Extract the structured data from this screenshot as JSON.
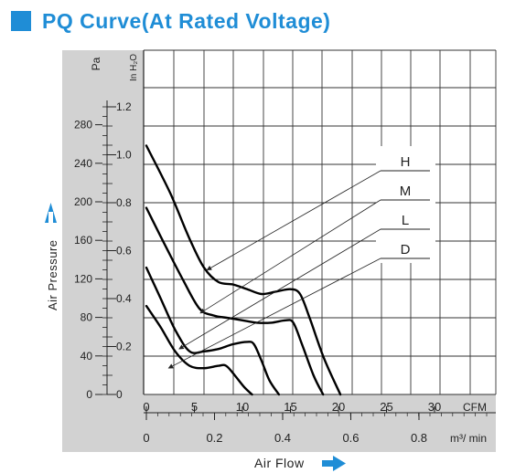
{
  "header": {
    "title": "PQ Curve(At Rated Voltage)"
  },
  "colors": {
    "accent": "#1f8dd6",
    "panel": "#d2d2d2",
    "grid": "#333333",
    "curve": "#000000"
  },
  "chart_data": {
    "type": "line",
    "title": "PQ Curve(At Rated Voltage)",
    "xlabel": "Air Flow",
    "ylabel": "Air Pressure",
    "y_unit_primary": "Pa",
    "y_unit_secondary": "In H₂O",
    "x_unit_primary": "CFM",
    "x_unit_secondary": "m³/ min",
    "x_ticks_cfm": [
      "0",
      "5",
      "10",
      "15",
      "20",
      "25",
      "30"
    ],
    "x_ticks_m3min": [
      "0",
      "0.2",
      "0.4",
      "0.6",
      "0.8"
    ],
    "y_ticks_pa": [
      "0",
      "40",
      "80",
      "120",
      "160",
      "200",
      "240",
      "280"
    ],
    "y_ticks_inh2o": [
      "0",
      "0.2",
      "0.4",
      "0.6",
      "0.8",
      "1.0",
      "1.2"
    ],
    "xlim": [
      0,
      35.7
    ],
    "ylim": [
      0,
      1.42
    ],
    "grid": true,
    "series": [
      {
        "name": "H",
        "x": [
          0,
          2.5,
          4.5,
          6.0,
          7.5,
          9.0,
          10.5,
          12.0,
          13.5,
          15.0,
          16.0,
          17.0,
          18.5,
          20.2
        ],
        "y": [
          1.04,
          0.84,
          0.65,
          0.53,
          0.47,
          0.46,
          0.44,
          0.42,
          0.43,
          0.44,
          0.42,
          0.32,
          0.15,
          0.0
        ]
      },
      {
        "name": "M",
        "x": [
          0,
          2.0,
          3.8,
          5.5,
          7.0,
          8.5,
          10.0,
          11.5,
          13.0,
          14.5,
          15.3,
          16.2,
          17.4,
          18.4
        ],
        "y": [
          0.78,
          0.62,
          0.48,
          0.36,
          0.33,
          0.32,
          0.31,
          0.3,
          0.3,
          0.31,
          0.3,
          0.21,
          0.08,
          0.0
        ]
      },
      {
        "name": "L",
        "x": [
          0,
          1.5,
          3.0,
          4.5,
          6.0,
          7.5,
          9.0,
          10.5,
          11.2,
          12.0,
          12.8,
          13.8
        ],
        "y": [
          0.53,
          0.4,
          0.27,
          0.18,
          0.18,
          0.19,
          0.21,
          0.22,
          0.21,
          0.14,
          0.06,
          0.0
        ]
      },
      {
        "name": "D",
        "x": [
          0,
          1.5,
          3.0,
          4.5,
          6.0,
          7.5,
          8.3,
          9.2,
          10.2,
          11.0
        ],
        "y": [
          0.37,
          0.28,
          0.18,
          0.12,
          0.11,
          0.12,
          0.12,
          0.08,
          0.03,
          0.0
        ]
      }
    ],
    "legend": [
      "H",
      "M",
      "L",
      "D"
    ],
    "legend_position": "right"
  }
}
